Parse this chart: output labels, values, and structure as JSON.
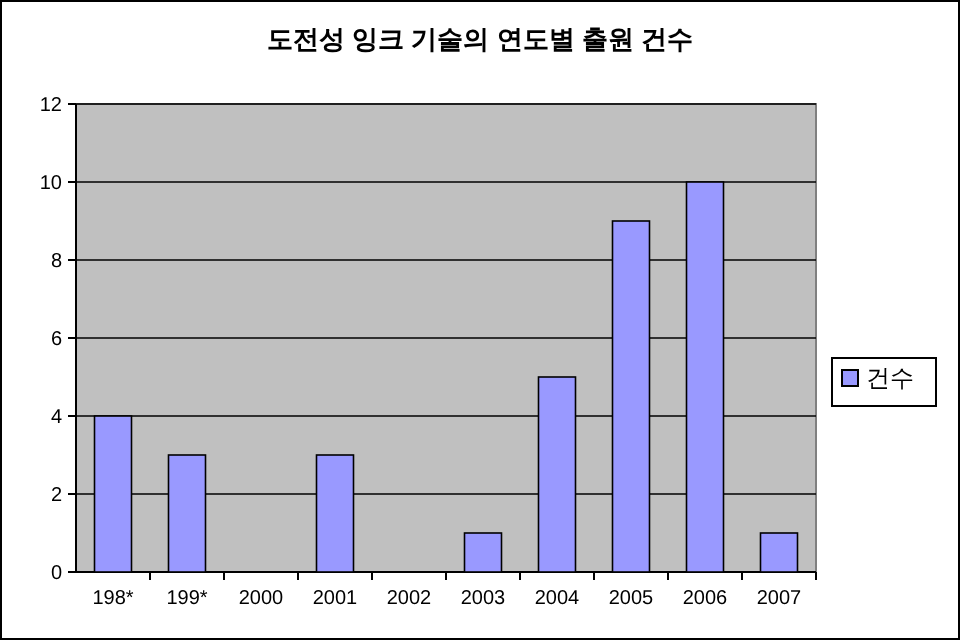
{
  "chart_data": {
    "type": "bar",
    "title": "도전성 잉크 기술의 연도별 출원 건수",
    "categories": [
      "198*",
      "199*",
      "2000",
      "2001",
      "2002",
      "2003",
      "2004",
      "2005",
      "2006",
      "2007"
    ],
    "series": [
      {
        "name": "건수",
        "color": "#9999ff",
        "values": [
          4,
          3,
          0,
          3,
          0,
          1,
          5,
          9,
          10,
          1
        ]
      }
    ],
    "ylim": [
      0,
      12
    ],
    "yticks": [
      0,
      2,
      4,
      6,
      8,
      10,
      12
    ],
    "grid": "y",
    "legend": "right"
  }
}
